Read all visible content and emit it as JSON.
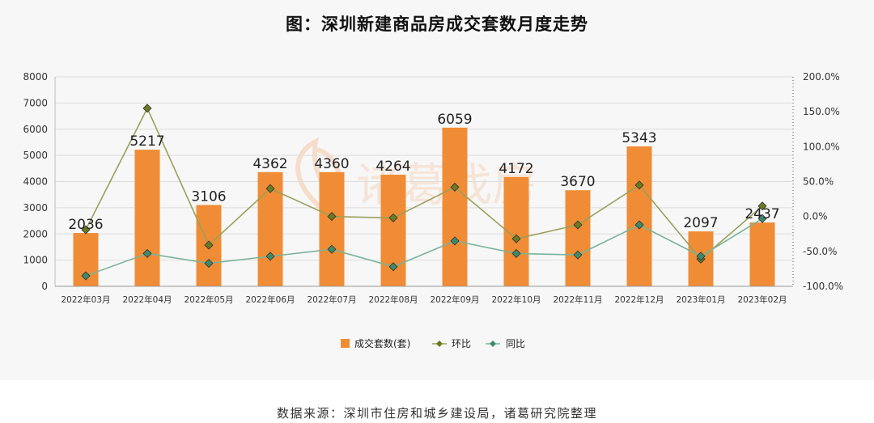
{
  "title": "图：深圳新建商品房成交套数月度走势",
  "source": "数据来源：深圳市住房和城乡建设局，诸葛研究院整理",
  "watermark": "诸葛找房",
  "colors": {
    "bar": "#f08c35",
    "mom": "#9aa05a",
    "mom_marker": "#6b7a1e",
    "yoy": "#7ab39a",
    "yoy_marker": "#3f8a6a"
  },
  "chart_data": {
    "type": "bar",
    "categories": [
      "2022年03月",
      "2022年04月",
      "2022年05月",
      "2022年06月",
      "2022年07月",
      "2022年08月",
      "2022年09月",
      "2022年10月",
      "2022年11月",
      "2022年12月",
      "2023年01月",
      "2023年02月"
    ],
    "series": [
      {
        "name": "成交套数(套)",
        "type": "bar",
        "axis": "left",
        "values": [
          2036,
          5217,
          3106,
          4362,
          4360,
          4264,
          6059,
          4172,
          3670,
          5343,
          2097,
          2437
        ]
      },
      {
        "name": "环比",
        "type": "line",
        "axis": "right",
        "values": [
          -19,
          155,
          -41,
          40,
          0,
          -2,
          42,
          -32,
          -12,
          45,
          -61,
          15
        ]
      },
      {
        "name": "同比",
        "type": "line",
        "axis": "right",
        "values": [
          -85,
          -53,
          -67,
          -57,
          -47,
          -72,
          -35,
          -53,
          -55,
          -12,
          -57,
          -3
        ]
      }
    ],
    "y_left": {
      "min": 0,
      "max": 8000,
      "ticks": [
        "0",
        "1000",
        "2000",
        "3000",
        "4000",
        "5000",
        "6000",
        "7000",
        "8000"
      ]
    },
    "y_right": {
      "min": -100,
      "max": 200,
      "ticks": [
        "-100.0%",
        "-50.0%",
        "0.0%",
        "50.0%",
        "100.0%",
        "150.0%",
        "200.0%"
      ]
    },
    "grid": true,
    "legend_position": "bottom"
  }
}
